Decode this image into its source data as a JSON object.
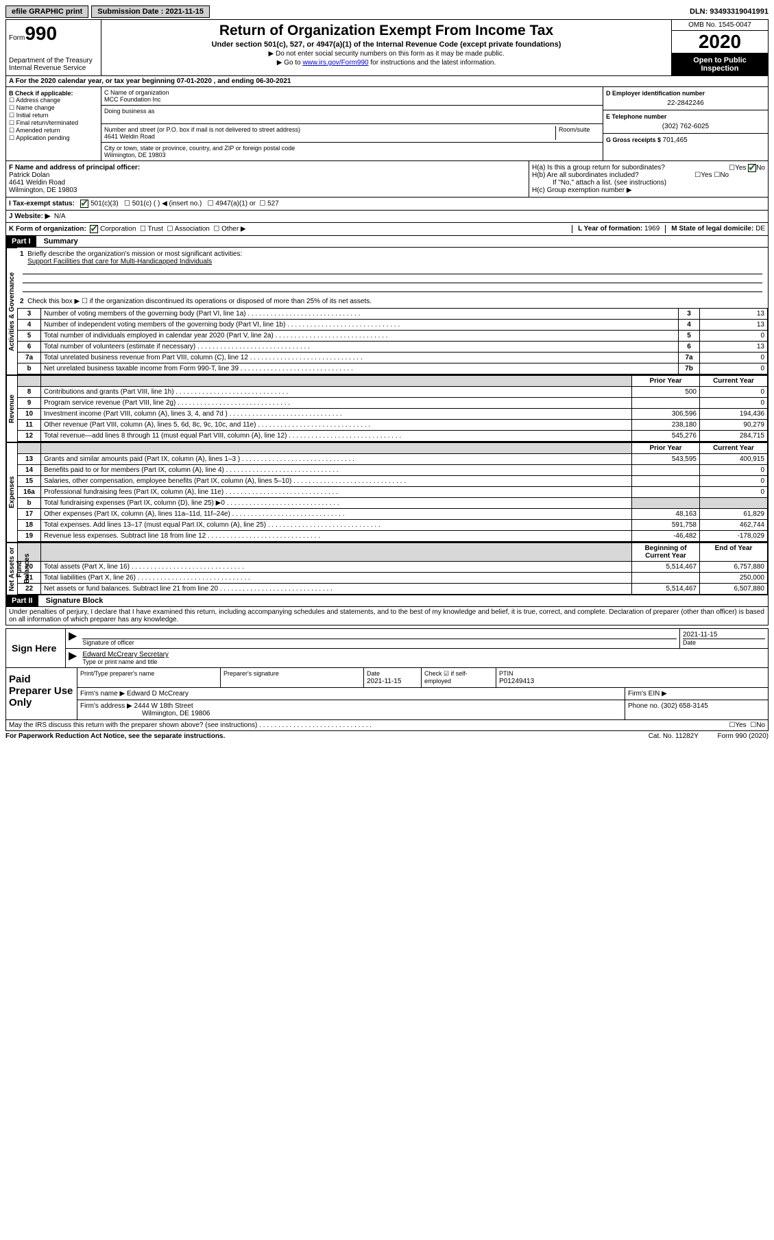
{
  "top": {
    "efile_label": "efile GRAPHIC print",
    "submission_label": "Submission Date : ",
    "submission_date": "2021-11-15",
    "dln_label": "DLN: ",
    "dln": "93493319041991"
  },
  "header": {
    "form_word": "Form",
    "form_number": "990",
    "dept": "Department of the Treasury",
    "irs": "Internal Revenue Service",
    "title": "Return of Organization Exempt From Income Tax",
    "subtitle": "Under section 501(c), 527, or 4947(a)(1) of the Internal Revenue Code (except private foundations)",
    "instr1": "▶ Do not enter social security numbers on this form as it may be made public.",
    "instr2_pre": "▶ Go to ",
    "instr2_link": "www.irs.gov/Form990",
    "instr2_post": " for instructions and the latest information.",
    "omb": "OMB No. 1545-0047",
    "year": "2020",
    "inspection": "Open to Public Inspection"
  },
  "line_a": "A For the 2020 calendar year, or tax year beginning 07-01-2020    , and ending 06-30-2021",
  "box_b": {
    "heading": "B Check if applicable:",
    "items": [
      "Address change",
      "Name change",
      "Initial return",
      "Final return/terminated",
      "Amended return",
      "Application pending"
    ]
  },
  "box_c": {
    "name_label": "C Name of organization",
    "name": "MCC Foundation Inc",
    "dba_label": "Doing business as",
    "addr_label": "Number and street (or P.O. box if mail is not delivered to street address)",
    "room_label": "Room/suite",
    "addr": "4641 Weldin Road",
    "city_label": "City or town, state or province, country, and ZIP or foreign postal code",
    "city": "Wilmington, DE  19803"
  },
  "box_d": {
    "ein_label": "D Employer identification number",
    "ein": "22-2842246",
    "phone_label": "E Telephone number",
    "phone": "(302) 762-6025",
    "gross_label": "G Gross receipts $ ",
    "gross": "701,465"
  },
  "box_f": {
    "label": "F Name and address of principal officer:",
    "name": "Patrick Dolan",
    "addr1": "4641 Weldin Road",
    "addr2": "Wilmington, DE  19803"
  },
  "box_h": {
    "ha": "H(a)  Is this a group return for subordinates?",
    "hb": "H(b)  Are all subordinates included?",
    "hb_note": "If \"No,\" attach a list. (see instructions)",
    "hc": "H(c)  Group exemption number ▶",
    "yes": "Yes",
    "no": "No"
  },
  "status": {
    "label": "I  Tax-exempt status:",
    "opt1": "501(c)(3)",
    "opt2": "501(c) (  ) ◀ (insert no.)",
    "opt3": "4947(a)(1) or",
    "opt4": "527"
  },
  "website": {
    "label": "J  Website: ▶",
    "value": "N/A"
  },
  "k_form": {
    "label": "K Form of organization:",
    "corp": "Corporation",
    "trust": "Trust",
    "assoc": "Association",
    "other": "Other ▶",
    "l": "L Year of formation: ",
    "l_val": "1969",
    "m": "M State of legal domicile: ",
    "m_val": "DE"
  },
  "part1": {
    "header": "Part I",
    "title": "Summary",
    "q1": "Briefly describe the organization's mission or most significant activities:",
    "mission": "Support Facilities that care for Multi-Handicapped Individuals",
    "q2": "Check this box ▶ ☐  if the organization discontinued its operations or disposed of more than 25% of its net assets.",
    "lines": [
      {
        "n": "3",
        "text": "Number of voting members of the governing body (Part VI, line 1a)",
        "box": "3",
        "val": "13"
      },
      {
        "n": "4",
        "text": "Number of independent voting members of the governing body (Part VI, line 1b)",
        "box": "4",
        "val": "13"
      },
      {
        "n": "5",
        "text": "Total number of individuals employed in calendar year 2020 (Part V, line 2a)",
        "box": "5",
        "val": "0"
      },
      {
        "n": "6",
        "text": "Total number of volunteers (estimate if necessary)",
        "box": "6",
        "val": "13"
      },
      {
        "n": "7a",
        "text": "Total unrelated business revenue from Part VIII, column (C), line 12",
        "box": "7a",
        "val": "0"
      },
      {
        "n": "b",
        "text": "Net unrelated business taxable income from Form 990-T, line 39",
        "box": "7b",
        "val": "0"
      }
    ],
    "two_col_header": {
      "prior": "Prior Year",
      "current": "Current Year"
    },
    "revenue": [
      {
        "n": "8",
        "text": "Contributions and grants (Part VIII, line 1h)",
        "prior": "500",
        "current": "0"
      },
      {
        "n": "9",
        "text": "Program service revenue (Part VIII, line 2g)",
        "prior": "",
        "current": "0"
      },
      {
        "n": "10",
        "text": "Investment income (Part VIII, column (A), lines 3, 4, and 7d )",
        "prior": "306,596",
        "current": "194,436"
      },
      {
        "n": "11",
        "text": "Other revenue (Part VIII, column (A), lines 5, 6d, 8c, 9c, 10c, and 11e)",
        "prior": "238,180",
        "current": "90,279"
      },
      {
        "n": "12",
        "text": "Total revenue—add lines 8 through 11 (must equal Part VIII, column (A), line 12)",
        "prior": "545,276",
        "current": "284,715"
      }
    ],
    "expenses": [
      {
        "n": "13",
        "text": "Grants and similar amounts paid (Part IX, column (A), lines 1–3 )",
        "prior": "543,595",
        "current": "400,915"
      },
      {
        "n": "14",
        "text": "Benefits paid to or for members (Part IX, column (A), line 4)",
        "prior": "",
        "current": "0"
      },
      {
        "n": "15",
        "text": "Salaries, other compensation, employee benefits (Part IX, column (A), lines 5–10)",
        "prior": "",
        "current": "0"
      },
      {
        "n": "16a",
        "text": "Professional fundraising fees (Part IX, column (A), line 11e)",
        "prior": "",
        "current": "0"
      },
      {
        "n": "b",
        "text": "Total fundraising expenses (Part IX, column (D), line 25) ▶0",
        "prior": "SHADE",
        "current": "SHADE"
      },
      {
        "n": "17",
        "text": "Other expenses (Part IX, column (A), lines 11a–11d, 11f–24e)",
        "prior": "48,163",
        "current": "61,829"
      },
      {
        "n": "18",
        "text": "Total expenses. Add lines 13–17 (must equal Part IX, column (A), line 25)",
        "prior": "591,758",
        "current": "462,744"
      },
      {
        "n": "19",
        "text": "Revenue less expenses. Subtract line 18 from line 12",
        "prior": "-46,482",
        "current": "-178,029"
      }
    ],
    "netassets_header": {
      "prior": "Beginning of Current Year",
      "current": "End of Year"
    },
    "netassets": [
      {
        "n": "20",
        "text": "Total assets (Part X, line 16)",
        "prior": "5,514,467",
        "current": "6,757,880"
      },
      {
        "n": "21",
        "text": "Total liabilities (Part X, line 26)",
        "prior": "",
        "current": "250,000"
      },
      {
        "n": "22",
        "text": "Net assets or fund balances. Subtract line 21 from line 20",
        "prior": "5,514,467",
        "current": "6,507,880"
      }
    ],
    "vlabels": {
      "gov": "Activities & Governance",
      "rev": "Revenue",
      "exp": "Expenses",
      "net": "Net Assets or Fund Balances"
    }
  },
  "part2": {
    "header": "Part II",
    "title": "Signature Block",
    "perjury": "Under penalties of perjury, I declare that I have examined this return, including accompanying schedules and statements, and to the best of my knowledge and belief, it is true, correct, and complete. Declaration of preparer (other than officer) is based on all information of which preparer has any knowledge."
  },
  "sign": {
    "label": "Sign Here",
    "sig_label": "Signature of officer",
    "date_label": "Date",
    "date": "2021-11-15",
    "name": "Edward McCreary  Secretary",
    "name_label": "Type or print name and title"
  },
  "paid": {
    "label": "Paid Preparer Use Only",
    "col1": "Print/Type preparer's name",
    "col2": "Preparer's signature",
    "col3": "Date",
    "date": "2021-11-15",
    "col4": "Check ☑ if self-employed",
    "col5_label": "PTIN",
    "col5": "P01249413",
    "firm_name_label": "Firm's name    ▶ ",
    "firm_name": "Edward D McCreary",
    "firm_ein_label": "Firm's EIN ▶",
    "firm_addr_label": "Firm's address ▶ ",
    "firm_addr1": "2444 W 18th Street",
    "firm_addr2": "Wilmington, DE  19806",
    "phone_label": "Phone no. ",
    "phone": "(302) 658-3145"
  },
  "footer": {
    "discuss": "May the IRS discuss this return with the preparer shown above? (see instructions)",
    "yes": "Yes",
    "no": "No",
    "paperwork": "For Paperwork Reduction Act Notice, see the separate instructions.",
    "cat": "Cat. No. 11282Y",
    "form": "Form 990 (2020)"
  }
}
